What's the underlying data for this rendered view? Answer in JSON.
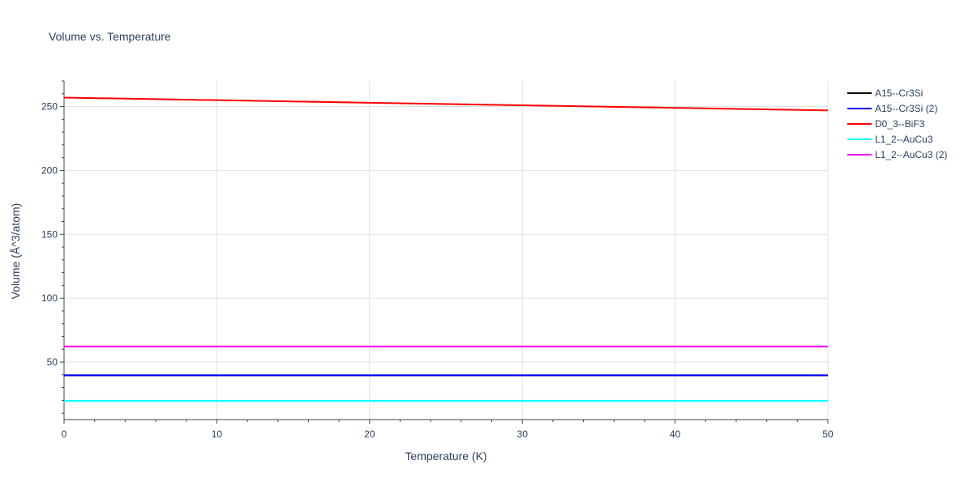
{
  "chart_data": {
    "type": "line",
    "title": "Volume vs. Temperature",
    "xlabel": "Temperature (K)",
    "ylabel": "Volume (Å^3/atom)",
    "xlim": [
      0,
      50
    ],
    "ylim": [
      5,
      270
    ],
    "x_ticks": [
      0,
      10,
      20,
      30,
      40,
      50
    ],
    "y_ticks": [
      50,
      100,
      150,
      200,
      250
    ],
    "grid": true,
    "legend_position": "top-right",
    "series": [
      {
        "name": "A15--Cr3Si",
        "color": "#000000",
        "x": [
          0,
          50
        ],
        "y": [
          39.6,
          39.6
        ]
      },
      {
        "name": "A15--Cr3Si (2)",
        "color": "#0000ff",
        "x": [
          0,
          50
        ],
        "y": [
          39.6,
          39.6
        ]
      },
      {
        "name": "D0_3--BiF3",
        "color": "#ff0000",
        "x": [
          0,
          10,
          20,
          30,
          40,
          50
        ],
        "y": [
          257,
          255,
          253,
          251,
          249,
          247
        ]
      },
      {
        "name": "L1_2--AuCu3",
        "color": "#00ffff",
        "x": [
          0,
          50
        ],
        "y": [
          19.7,
          19.7
        ]
      },
      {
        "name": "L1_2--AuCu3 (2)",
        "color": "#ff00ff",
        "x": [
          0,
          50
        ],
        "y": [
          62.2,
          62.2
        ]
      }
    ]
  }
}
